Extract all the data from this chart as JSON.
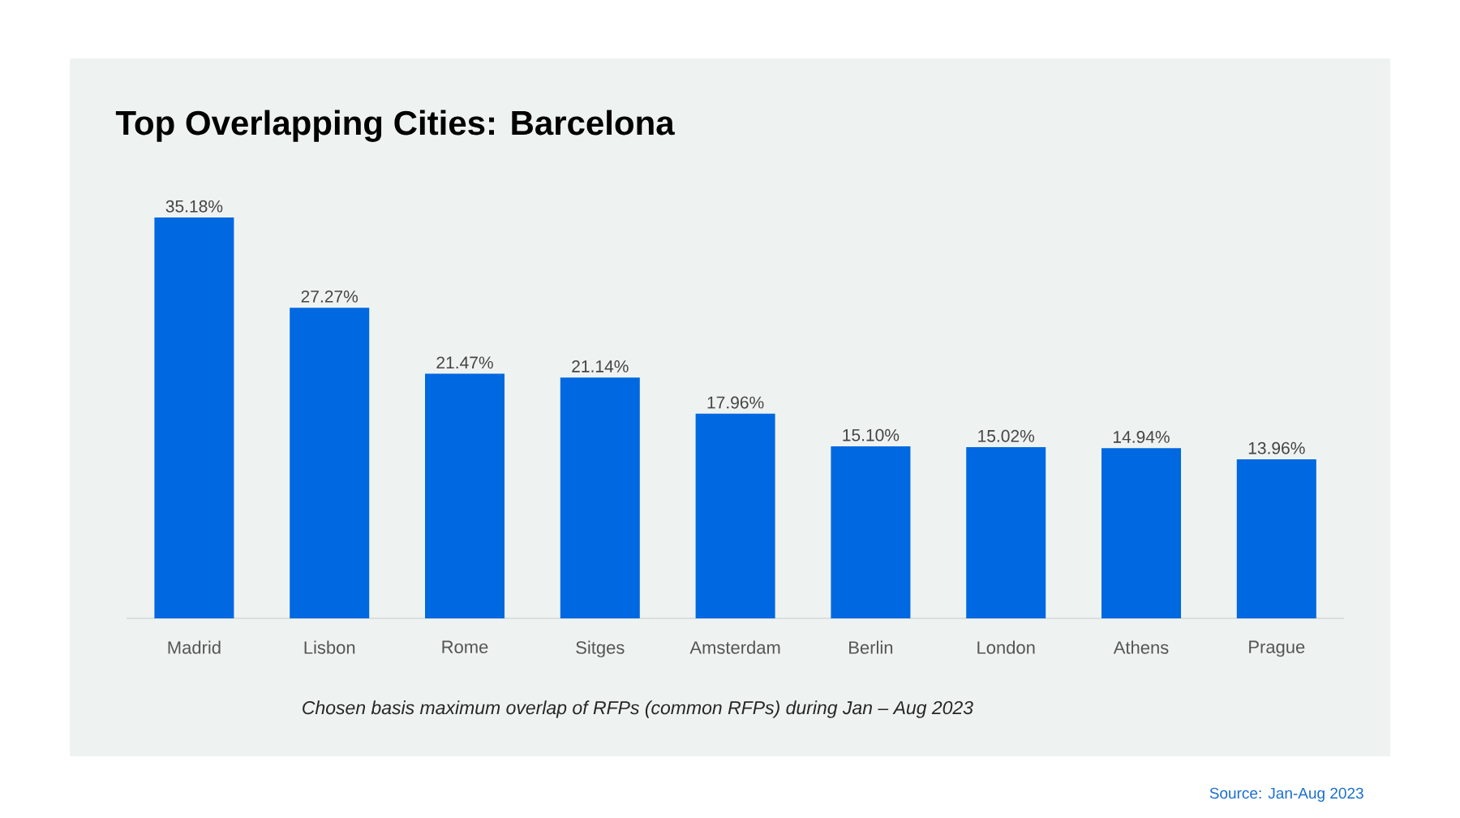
{
  "chart_data": {
    "type": "bar",
    "title": "Top Overlapping Cities: Barcelona",
    "categories": [
      "Madrid",
      "Lisbon",
      "Rome",
      "Sitges",
      "Amsterdam",
      "Berlin",
      "London",
      "Athens",
      "Prague"
    ],
    "values": [
      35.18,
      27.27,
      21.47,
      21.14,
      17.96,
      15.1,
      15.02,
      14.94,
      13.96
    ],
    "value_labels": [
      "35.18%",
      "27.27%",
      "21.47%",
      "21.14%",
      "17.96%",
      "15.10%",
      "15.02%",
      "14.94%",
      "13.96%"
    ],
    "color": "#0068e0",
    "annotations": [
      "Chosen basis maximum overlap of RFPs (common RFPs) during Jan – Aug 2023",
      "Source: Jan-Aug 2023"
    ]
  }
}
